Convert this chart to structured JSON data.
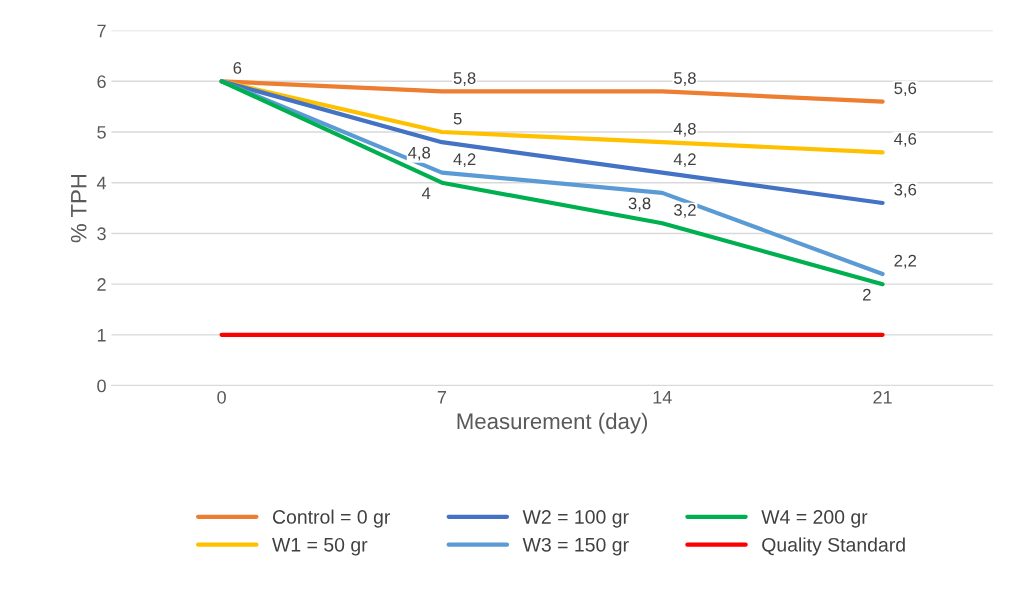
{
  "chart_data": {
    "type": "line",
    "xlabel": "Measurement (day)",
    "ylabel": "% TPH",
    "categories": [
      "0",
      "7",
      "14",
      "21"
    ],
    "ylim": [
      0,
      7
    ],
    "yticks": [
      0,
      1,
      2,
      3,
      4,
      5,
      6,
      7
    ],
    "grid": "y",
    "legend": "bottom",
    "line_style": "solid",
    "marker": "none",
    "series": [
      {
        "name": "Control = 0 gr",
        "color": "#ed7d31",
        "values": [
          6,
          5.8,
          5.8,
          5.6
        ],
        "value_labels": [
          "6",
          "5,8",
          "5,8",
          "5,6"
        ]
      },
      {
        "name": "W1 = 50 gr",
        "color": "#ffc000",
        "values": [
          6,
          5,
          4.8,
          4.6
        ],
        "value_labels": [
          null,
          "5",
          "4,8",
          "4,6"
        ]
      },
      {
        "name": "W2 = 100 gr",
        "color": "#4472c4",
        "values": [
          6,
          4.8,
          4.2,
          3.6
        ],
        "value_labels": [
          null,
          "4,8",
          "4,2",
          "3,6"
        ]
      },
      {
        "name": "W3 = 150 gr",
        "color": "#5b9bd5",
        "values": [
          6,
          4.2,
          3.8,
          2.2
        ],
        "value_labels": [
          null,
          "4,2",
          "3,8",
          "2,2"
        ]
      },
      {
        "name": "W4 = 200 gr",
        "color": "#00b050",
        "values": [
          6,
          4,
          3.2,
          2
        ],
        "value_labels": [
          null,
          "4",
          "3,2",
          "2"
        ]
      },
      {
        "name": "Quality Standard",
        "color": "#ff0000",
        "values": [
          1,
          1,
          1,
          1
        ]
      }
    ]
  }
}
